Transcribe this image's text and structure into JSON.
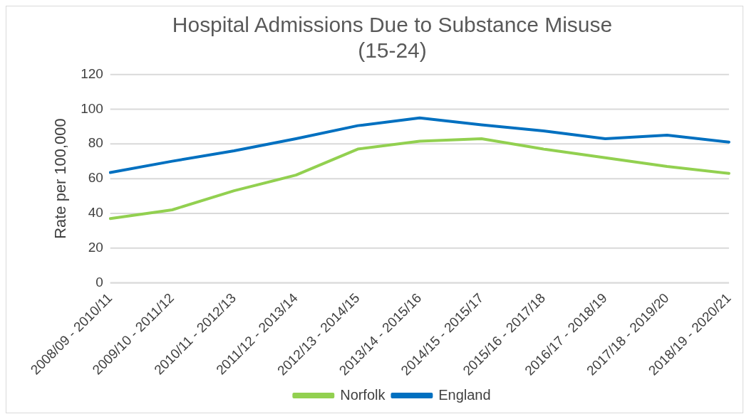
{
  "chart_data": {
    "type": "line",
    "title": [
      "Hospital Admissions Due to Substance Misuse",
      "(15-24)"
    ],
    "ylabel": "Rate per 100,000",
    "categories": [
      "2008/09 - 2010/11",
      "2009/10 - 2011/12",
      "2010/11 - 2012/13",
      "2011/12 - 2013/14",
      "2012/13 - 2014/15",
      "2013/14 - 2015/16",
      "2014/15 - 2015/17",
      "2015/16 - 2017/18",
      "2016/17 - 2018/19",
      "2017/18 - 2019/20",
      "2018/19 - 2020/21"
    ],
    "series": [
      {
        "name": "Norfolk",
        "color": "#92d050",
        "values": [
          37,
          42,
          53,
          62,
          77,
          81.5,
          83,
          77,
          72,
          67,
          63
        ]
      },
      {
        "name": "England",
        "color": "#0070c0",
        "values": [
          63.5,
          70,
          76,
          83,
          90.5,
          95,
          91,
          87.5,
          83,
          85,
          81
        ]
      }
    ],
    "ylim": [
      0,
      120
    ],
    "yticks": [
      0,
      20,
      40,
      60,
      80,
      100,
      120
    ],
    "grid": "y",
    "legend": "bottom",
    "marker": "none",
    "line_style": "solid"
  }
}
